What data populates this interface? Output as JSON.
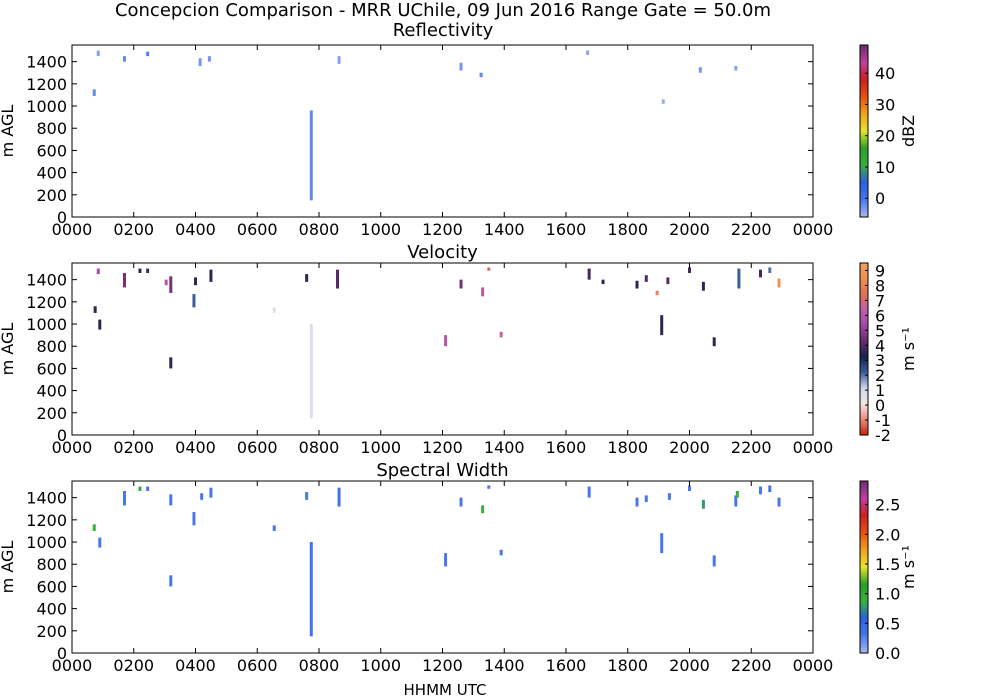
{
  "chart_data": {
    "type": "heatmap",
    "title_line_1": "Concepcion Comparison - MRR UChile, 09 Jun 2016 Range Gate = 50.0m",
    "title_line_2": "Reflectivity",
    "xlabel": "HHMM UTC",
    "x_ticks": [
      "0000",
      "0200",
      "0400",
      "0600",
      "0800",
      "1000",
      "1200",
      "1400",
      "1600",
      "1800",
      "2000",
      "2200",
      "0000"
    ],
    "xlim_hours": [
      0,
      24
    ],
    "ylim_m": [
      0,
      1550
    ],
    "y_ticks": [
      0,
      200,
      400,
      600,
      800,
      1000,
      1200,
      1400
    ],
    "ylabel": "m AGL",
    "grid": false,
    "panels": [
      {
        "name": "Reflectivity",
        "show_title": false,
        "colorbar": {
          "label": "dBZ",
          "range": [
            -6,
            49
          ],
          "ticks": [
            {
              "v": 0,
              "t": "0"
            },
            {
              "v": 10,
              "t": "10"
            },
            {
              "v": 20,
              "t": "20"
            },
            {
              "v": 30,
              "t": "30"
            },
            {
              "v": 40,
              "t": "40"
            }
          ],
          "stops": [
            "#aab8f0",
            "#4a78ea",
            "#2c5ee0",
            "#38b040",
            "#2aa02a",
            "#e6e62a",
            "#f0a020",
            "#e85010",
            "#cc2020",
            "#c040a0",
            "#6a2a70"
          ]
        },
        "cells": [
          {
            "t": 7.75,
            "h0": 150,
            "h1": 960,
            "v": -2
          },
          {
            "t": 0.72,
            "h0": 1090,
            "h1": 1150,
            "v": -2
          },
          {
            "t": 0.85,
            "h0": 1450,
            "h1": 1500,
            "v": -4
          },
          {
            "t": 1.7,
            "h0": 1400,
            "h1": 1450,
            "v": -2
          },
          {
            "t": 2.45,
            "h0": 1450,
            "h1": 1490,
            "v": -1
          },
          {
            "t": 4.15,
            "h0": 1360,
            "h1": 1430,
            "v": -3
          },
          {
            "t": 4.45,
            "h0": 1400,
            "h1": 1450,
            "v": -3
          },
          {
            "t": 8.65,
            "h0": 1380,
            "h1": 1450,
            "v": -4
          },
          {
            "t": 12.6,
            "h0": 1320,
            "h1": 1390,
            "v": -3
          },
          {
            "t": 13.25,
            "h0": 1260,
            "h1": 1300,
            "v": -2
          },
          {
            "t": 16.7,
            "h0": 1460,
            "h1": 1500,
            "v": -4
          },
          {
            "t": 19.15,
            "h0": 1020,
            "h1": 1060,
            "v": -5
          },
          {
            "t": 20.35,
            "h0": 1300,
            "h1": 1350,
            "v": -3
          },
          {
            "t": 21.5,
            "h0": 1320,
            "h1": 1360,
            "v": -4
          }
        ]
      },
      {
        "name": "Velocity",
        "show_title": true,
        "colorbar": {
          "label": "m s⁻¹",
          "range": [
            -2,
            9.5
          ],
          "ticks": [
            {
              "v": -2,
              "t": "-2"
            },
            {
              "v": -1,
              "t": "-1"
            },
            {
              "v": 0,
              "t": "0"
            },
            {
              "v": 1,
              "t": "1"
            },
            {
              "v": 2,
              "t": "2"
            },
            {
              "v": 3,
              "t": "3"
            },
            {
              "v": 4,
              "t": "4"
            },
            {
              "v": 5,
              "t": "5"
            },
            {
              "v": 6,
              "t": "6"
            },
            {
              "v": 7,
              "t": "7"
            },
            {
              "v": 8,
              "t": "8"
            },
            {
              "v": 9,
              "t": "9"
            }
          ],
          "stops": [
            "#c82810",
            "#e88a7a",
            "#f4e6e4",
            "#cdd6ea",
            "#3c5e9a",
            "#16244a",
            "#6a2a70",
            "#a04aa0",
            "#c060b0",
            "#e07050",
            "#f09050",
            "#f0a060"
          ]
        },
        "cells": [
          {
            "t": 7.75,
            "h0": 150,
            "h1": 1000,
            "v": 0.7
          },
          {
            "t": 0.75,
            "h0": 1100,
            "h1": 1160,
            "v": 3.5
          },
          {
            "t": 0.9,
            "h0": 950,
            "h1": 1040,
            "v": 3.5
          },
          {
            "t": 0.85,
            "h0": 1450,
            "h1": 1500,
            "v": 5.5
          },
          {
            "t": 1.7,
            "h0": 1330,
            "h1": 1460,
            "v": 4.5
          },
          {
            "t": 2.2,
            "h0": 1460,
            "h1": 1500,
            "v": 3.5
          },
          {
            "t": 2.45,
            "h0": 1460,
            "h1": 1500,
            "v": 3.8
          },
          {
            "t": 3.05,
            "h0": 1350,
            "h1": 1400,
            "v": 6
          },
          {
            "t": 3.2,
            "h0": 1280,
            "h1": 1430,
            "v": 4.5
          },
          {
            "t": 3.2,
            "h0": 600,
            "h1": 700,
            "v": 3.5
          },
          {
            "t": 4.0,
            "h0": 1350,
            "h1": 1420,
            "v": 3.5
          },
          {
            "t": 3.95,
            "h0": 1150,
            "h1": 1270,
            "v": 2.2
          },
          {
            "t": 4.5,
            "h0": 1380,
            "h1": 1490,
            "v": 3.5
          },
          {
            "t": 6.55,
            "h0": 1100,
            "h1": 1150,
            "v": 0.5
          },
          {
            "t": 7.6,
            "h0": 1380,
            "h1": 1450,
            "v": 3.5
          },
          {
            "t": 8.6,
            "h0": 1320,
            "h1": 1490,
            "v": 4
          },
          {
            "t": 12.1,
            "h0": 800,
            "h1": 900,
            "v": 6
          },
          {
            "t": 12.6,
            "h0": 1320,
            "h1": 1400,
            "v": 4.5
          },
          {
            "t": 13.3,
            "h0": 1250,
            "h1": 1330,
            "v": 6
          },
          {
            "t": 13.5,
            "h0": 1480,
            "h1": 1510,
            "v": 7
          },
          {
            "t": 13.9,
            "h0": 880,
            "h1": 930,
            "v": 6.5
          },
          {
            "t": 16.75,
            "h0": 1400,
            "h1": 1500,
            "v": 3.8
          },
          {
            "t": 17.2,
            "h0": 1360,
            "h1": 1400,
            "v": 3.5
          },
          {
            "t": 18.3,
            "h0": 1320,
            "h1": 1390,
            "v": 3.5
          },
          {
            "t": 18.6,
            "h0": 1380,
            "h1": 1440,
            "v": 4
          },
          {
            "t": 18.95,
            "h0": 1260,
            "h1": 1300,
            "v": 8
          },
          {
            "t": 19.1,
            "h0": 900,
            "h1": 1080,
            "v": 3.5
          },
          {
            "t": 19.3,
            "h0": 1360,
            "h1": 1420,
            "v": 4
          },
          {
            "t": 20.45,
            "h0": 1300,
            "h1": 1380,
            "v": 3.5
          },
          {
            "t": 20.8,
            "h0": 800,
            "h1": 880,
            "v": 3.5
          },
          {
            "t": 20.0,
            "h0": 1460,
            "h1": 1510,
            "v": 3.8
          },
          {
            "t": 21.6,
            "h0": 1320,
            "h1": 1500,
            "v": 2.2
          },
          {
            "t": 22.3,
            "h0": 1420,
            "h1": 1490,
            "v": 3.8
          },
          {
            "t": 22.6,
            "h0": 1460,
            "h1": 1510,
            "v": 2
          },
          {
            "t": 22.9,
            "h0": 1330,
            "h1": 1410,
            "v": 8.5
          }
        ]
      },
      {
        "name": "Spectral Width",
        "show_title": true,
        "colorbar": {
          "label": "m s⁻¹",
          "range": [
            0,
            2.9
          ],
          "ticks": [
            {
              "v": 0,
              "t": "0.0"
            },
            {
              "v": 0.5,
              "t": "0.5"
            },
            {
              "v": 1.0,
              "t": "1.0"
            },
            {
              "v": 1.5,
              "t": "1.5"
            },
            {
              "v": 2.0,
              "t": "2.0"
            },
            {
              "v": 2.5,
              "t": "2.5"
            }
          ],
          "stops": [
            "#aab8f0",
            "#4a78ea",
            "#2c5ee0",
            "#38b040",
            "#2aa02a",
            "#e6e62a",
            "#f0a020",
            "#e85010",
            "#cc2020",
            "#c040a0",
            "#6a2a70"
          ]
        },
        "cells": [
          {
            "t": 7.75,
            "h0": 150,
            "h1": 1000,
            "v": 0.35
          },
          {
            "t": 0.72,
            "h0": 1100,
            "h1": 1160,
            "v": 0.9
          },
          {
            "t": 0.9,
            "h0": 950,
            "h1": 1040,
            "v": 0.3
          },
          {
            "t": 1.7,
            "h0": 1330,
            "h1": 1460,
            "v": 0.3
          },
          {
            "t": 2.2,
            "h0": 1460,
            "h1": 1500,
            "v": 0.9
          },
          {
            "t": 2.45,
            "h0": 1460,
            "h1": 1500,
            "v": 0.3
          },
          {
            "t": 3.2,
            "h0": 1330,
            "h1": 1430,
            "v": 0.3
          },
          {
            "t": 3.2,
            "h0": 600,
            "h1": 700,
            "v": 0.3
          },
          {
            "t": 3.95,
            "h0": 1150,
            "h1": 1270,
            "v": 0.3
          },
          {
            "t": 4.2,
            "h0": 1380,
            "h1": 1440,
            "v": 0.3
          },
          {
            "t": 4.5,
            "h0": 1400,
            "h1": 1490,
            "v": 0.3
          },
          {
            "t": 6.55,
            "h0": 1100,
            "h1": 1150,
            "v": 0.3
          },
          {
            "t": 7.6,
            "h0": 1380,
            "h1": 1450,
            "v": 0.3
          },
          {
            "t": 8.65,
            "h0": 1320,
            "h1": 1490,
            "v": 0.35
          },
          {
            "t": 12.1,
            "h0": 780,
            "h1": 900,
            "v": 0.3
          },
          {
            "t": 12.6,
            "h0": 1320,
            "h1": 1400,
            "v": 0.3
          },
          {
            "t": 13.3,
            "h0": 1260,
            "h1": 1330,
            "v": 0.9
          },
          {
            "t": 13.5,
            "h0": 1480,
            "h1": 1510,
            "v": 0.3
          },
          {
            "t": 13.9,
            "h0": 880,
            "h1": 930,
            "v": 0.3
          },
          {
            "t": 16.75,
            "h0": 1400,
            "h1": 1500,
            "v": 0.3
          },
          {
            "t": 18.3,
            "h0": 1320,
            "h1": 1400,
            "v": 0.3
          },
          {
            "t": 18.6,
            "h0": 1360,
            "h1": 1420,
            "v": 0.3
          },
          {
            "t": 19.1,
            "h0": 900,
            "h1": 1080,
            "v": 0.3
          },
          {
            "t": 19.35,
            "h0": 1380,
            "h1": 1440,
            "v": 0.3
          },
          {
            "t": 20.45,
            "h0": 1300,
            "h1": 1380,
            "v": 0.8
          },
          {
            "t": 20.8,
            "h0": 780,
            "h1": 880,
            "v": 0.3
          },
          {
            "t": 20.0,
            "h0": 1460,
            "h1": 1510,
            "v": 0.3
          },
          {
            "t": 21.5,
            "h0": 1320,
            "h1": 1420,
            "v": 0.3
          },
          {
            "t": 21.55,
            "h0": 1400,
            "h1": 1460,
            "v": 0.9
          },
          {
            "t": 22.3,
            "h0": 1430,
            "h1": 1500,
            "v": 0.3
          },
          {
            "t": 22.6,
            "h0": 1450,
            "h1": 1510,
            "v": 0.3
          },
          {
            "t": 22.9,
            "h0": 1320,
            "h1": 1400,
            "v": 0.3
          }
        ]
      }
    ]
  }
}
